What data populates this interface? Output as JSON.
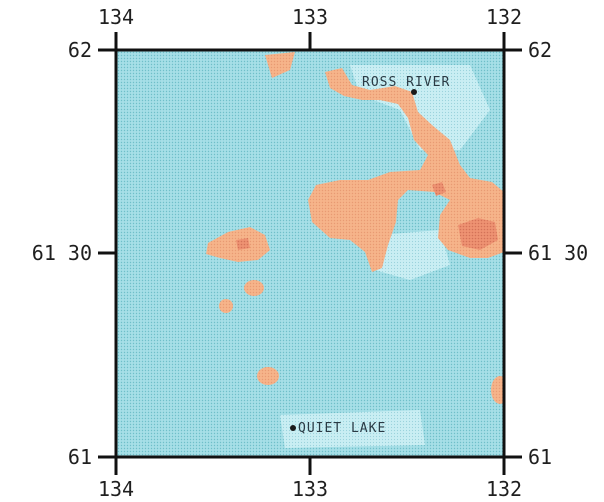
{
  "map": {
    "lon_labels_top": [
      "134",
      "133",
      "132"
    ],
    "lon_labels_bottom": [
      "134",
      "133",
      "132"
    ],
    "lat_labels_left": [
      "62",
      "61 30",
      "61"
    ],
    "lat_labels_right": [
      "62",
      "61 30",
      "61"
    ],
    "places": [
      {
        "name": "ROSS RIVER"
      },
      {
        "name": "QUIET LAKE"
      }
    ],
    "colors": {
      "background_cyan": "#9fdde6",
      "light_cyan": "#c4ecf1",
      "orange": "#f4ad80",
      "dark_orange": "#e88a6a",
      "frame": "#111111"
    }
  }
}
